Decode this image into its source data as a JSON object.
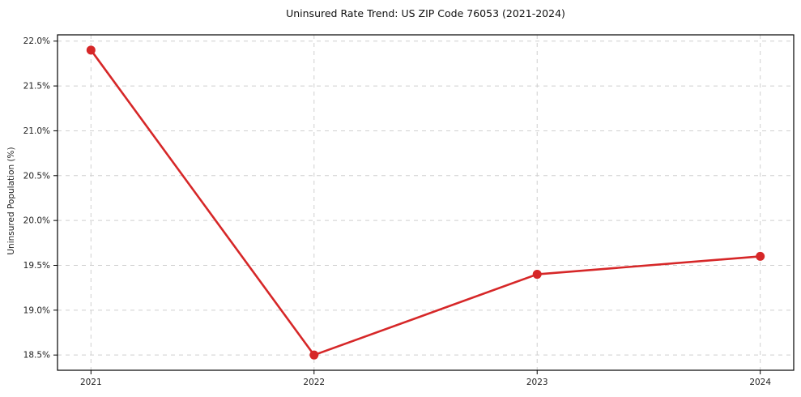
{
  "chart_data": {
    "type": "line",
    "title": "Uninsured Rate Trend: US ZIP Code 76053 (2021-2024)",
    "xlabel": "",
    "ylabel": "Uninsured Population (%)",
    "x": [
      2021,
      2022,
      2023,
      2024
    ],
    "values": [
      21.9,
      18.5,
      19.4,
      19.6
    ],
    "x_tick_labels": [
      "2021",
      "2022",
      "2023",
      "2024"
    ],
    "y_ticks": [
      18.5,
      19.0,
      19.5,
      20.0,
      20.5,
      21.0,
      21.5,
      22.0
    ],
    "y_tick_labels": [
      "18.5%",
      "19.0%",
      "19.5%",
      "20.0%",
      "20.5%",
      "21.0%",
      "21.5%",
      "22.0%"
    ],
    "xlim": [
      2020.85,
      2024.15
    ],
    "ylim": [
      18.33,
      22.07
    ],
    "grid": true,
    "grid_style": "dashed",
    "legend_position": "none",
    "line_color": "#d62728",
    "marker": "circle",
    "marker_color": "#d62728",
    "grid_color": "#cfcfcf",
    "spine_color": "#000000",
    "background_color": "#ffffff"
  }
}
